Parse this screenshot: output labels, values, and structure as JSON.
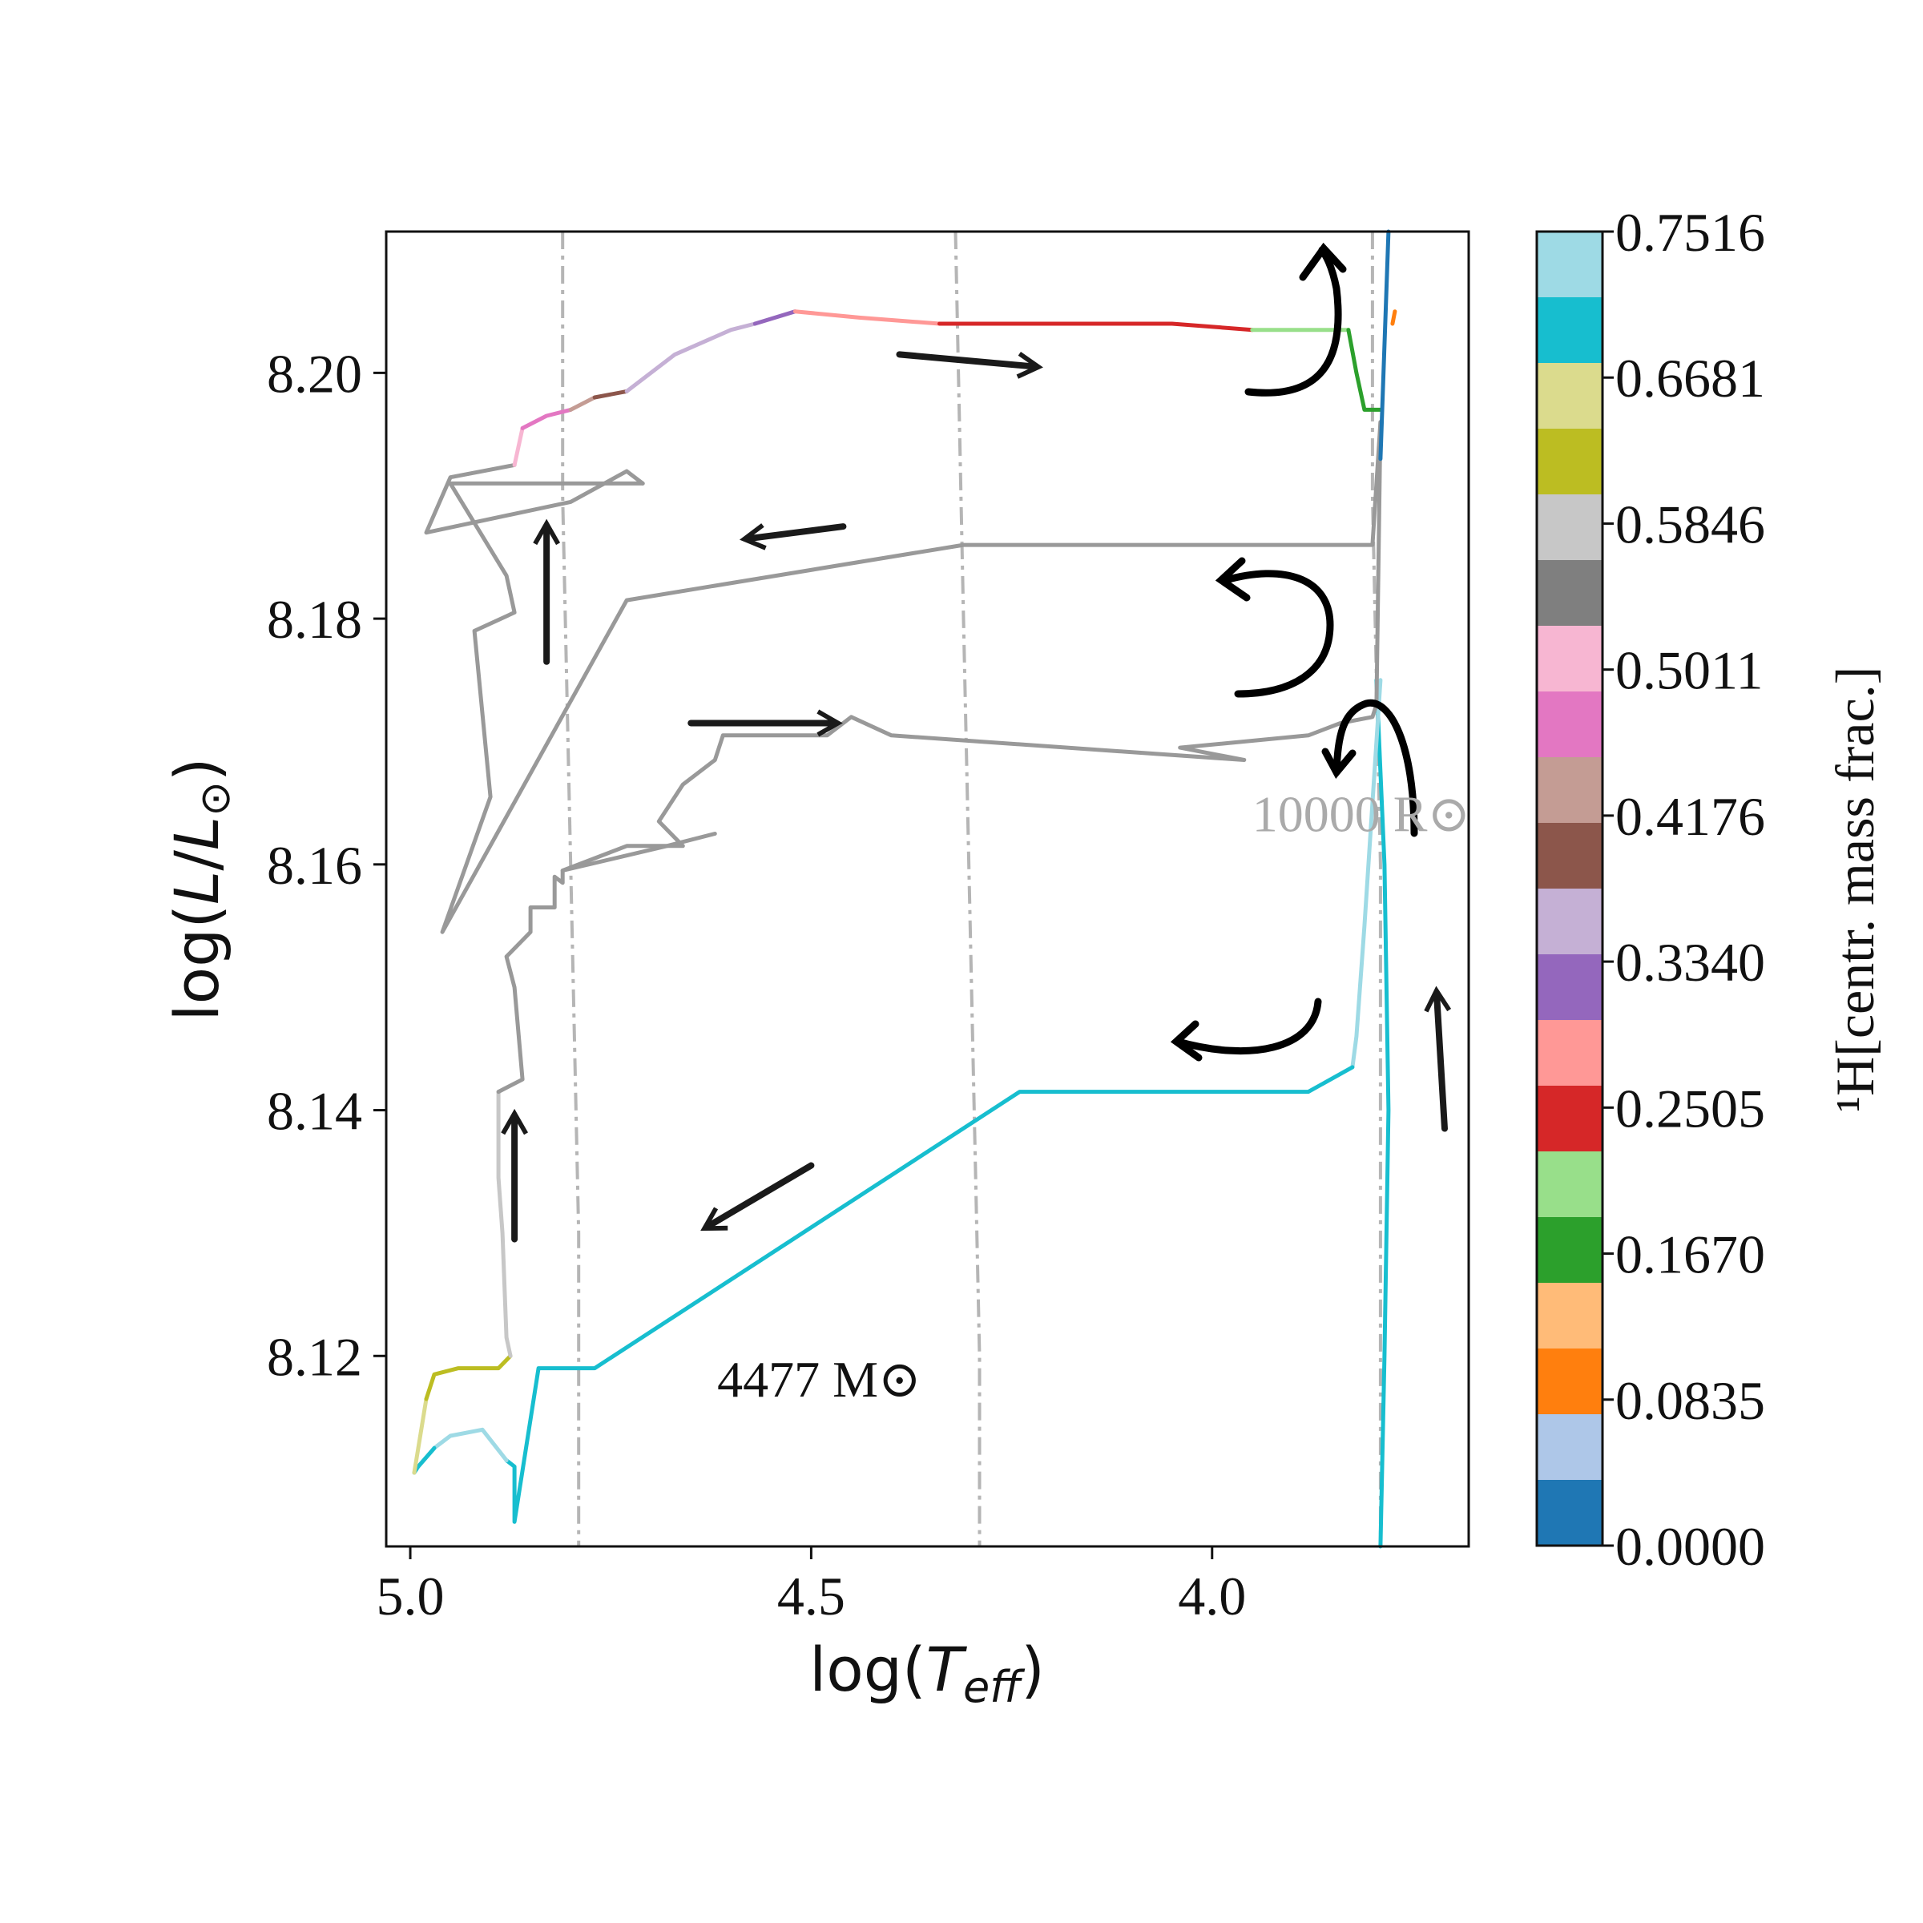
{
  "chart_data": {
    "type": "line",
    "xlabel": "log(T_eff)",
    "ylabel": "log(L/L_sun)",
    "xlim": [
      5.03,
      3.68
    ],
    "ylim": [
      8.1045,
      8.2115
    ],
    "x_ticks": [
      {
        "value": 5.0,
        "label": "5.0"
      },
      {
        "value": 4.5,
        "label": "4.5"
      },
      {
        "value": 4.0,
        "label": "4.0"
      }
    ],
    "y_ticks": [
      {
        "value": 8.12,
        "label": "8.12"
      },
      {
        "value": 8.14,
        "label": "8.14"
      },
      {
        "value": 8.16,
        "label": "8.16"
      },
      {
        "value": 8.18,
        "label": "8.18"
      },
      {
        "value": 8.2,
        "label": "8.20"
      }
    ],
    "grid": false,
    "annotations": [
      {
        "text": "4477 M⊙",
        "x": 4.49,
        "y": 8.118,
        "color": "#111111"
      },
      {
        "text": "10000 R⊙",
        "x": 3.95,
        "y": 8.164,
        "color": "#aaaaaa"
      }
    ],
    "colorbar": {
      "label": "¹H[centr. mass frac.]",
      "ticks": [
        "0.7516",
        "0.6681",
        "0.5846",
        "0.5011",
        "0.4176",
        "0.3340",
        "0.2505",
        "0.1670",
        "0.0835",
        "0.0000"
      ],
      "colors_top_to_bottom": [
        "#9edae5",
        "#17becf",
        "#dbdb8d",
        "#bcbd22",
        "#c7c7c7",
        "#7f7f7f",
        "#f7b6d2",
        "#e377c2",
        "#c49c94",
        "#8c564b",
        "#c5b0d5",
        "#9467bd",
        "#ff9896",
        "#d62728",
        "#98df8a",
        "#2ca02c",
        "#ffbb78",
        "#ff7f0e",
        "#aec7e8",
        "#1f77b4"
      ]
    },
    "radius_lines": [
      {
        "points": [
          [
            4.81,
            8.2115
          ],
          [
            4.81,
            8.19
          ],
          [
            4.8,
            8.16
          ],
          [
            4.79,
            8.13
          ],
          [
            4.79,
            8.1045
          ]
        ]
      },
      {
        "points": [
          [
            4.32,
            8.2115
          ],
          [
            4.31,
            8.18
          ],
          [
            4.3,
            8.15
          ],
          [
            4.29,
            8.12
          ],
          [
            4.29,
            8.1045
          ]
        ]
      },
      {
        "points": [
          [
            3.8,
            8.2115
          ],
          [
            3.8,
            8.19
          ],
          [
            3.79,
            8.16
          ],
          [
            3.79,
            8.13
          ],
          [
            3.79,
            8.1045
          ]
        ]
      }
    ],
    "track_segments": [
      {
        "color": "#17becf",
        "points": [
          [
            3.79,
            8.1045
          ],
          [
            3.785,
            8.12
          ],
          [
            3.78,
            8.14
          ],
          [
            3.785,
            8.16
          ],
          [
            3.795,
            8.175
          ]
        ]
      },
      {
        "color": "#9edae5",
        "points": [
          [
            3.79,
            8.175
          ],
          [
            3.81,
            8.155
          ],
          [
            3.82,
            8.146
          ],
          [
            3.825,
            8.1435
          ]
        ]
      },
      {
        "color": "#17becf",
        "points": [
          [
            3.825,
            8.1435
          ],
          [
            3.88,
            8.1415
          ],
          [
            4.0,
            8.1415
          ],
          [
            4.24,
            8.1415
          ],
          [
            4.77,
            8.119
          ],
          [
            4.84,
            8.119
          ],
          [
            4.87,
            8.1065
          ],
          [
            4.87,
            8.111
          ],
          [
            4.88,
            8.1115
          ]
        ]
      },
      {
        "color": "#9edae5",
        "points": [
          [
            4.88,
            8.1115
          ],
          [
            4.91,
            8.114
          ],
          [
            4.95,
            8.1135
          ],
          [
            4.97,
            8.1125
          ]
        ]
      },
      {
        "color": "#17becf",
        "points": [
          [
            4.97,
            8.1125
          ],
          [
            4.99,
            8.111
          ],
          [
            4.995,
            8.1105
          ]
        ]
      },
      {
        "color": "#dbdb8d",
        "points": [
          [
            4.995,
            8.1105
          ],
          [
            4.98,
            8.1165
          ]
        ]
      },
      {
        "color": "#bcbd22",
        "points": [
          [
            4.98,
            8.1165
          ],
          [
            4.97,
            8.1185
          ],
          [
            4.94,
            8.119
          ],
          [
            4.89,
            8.119
          ],
          [
            4.875,
            8.12
          ]
        ]
      },
      {
        "color": "#c7c7c7",
        "points": [
          [
            4.875,
            8.12
          ],
          [
            4.88,
            8.1215
          ],
          [
            4.885,
            8.13
          ],
          [
            4.89,
            8.1345
          ],
          [
            4.89,
            8.1415
          ]
        ]
      },
      {
        "color": "#999999",
        "points": [
          [
            4.89,
            8.1415
          ],
          [
            4.86,
            8.1425
          ],
          [
            4.87,
            8.15
          ],
          [
            4.88,
            8.1525
          ],
          [
            4.85,
            8.1545
          ],
          [
            4.85,
            8.1565
          ],
          [
            4.82,
            8.1565
          ],
          [
            4.82,
            8.159
          ],
          [
            4.81,
            8.1585
          ],
          [
            4.81,
            8.1595
          ],
          [
            4.68,
            8.1615
          ],
          [
            4.62,
            8.1625
          ]
        ]
      },
      {
        "color": "#999999",
        "points": [
          [
            4.81,
            8.1595
          ],
          [
            4.73,
            8.1615
          ],
          [
            4.66,
            8.1615
          ],
          [
            4.69,
            8.1635
          ],
          [
            4.66,
            8.1665
          ],
          [
            4.62,
            8.1685
          ],
          [
            4.61,
            8.1705
          ],
          [
            4.48,
            8.1705
          ],
          [
            4.45,
            8.172
          ],
          [
            4.4,
            8.1705
          ],
          [
            3.96,
            8.1685
          ],
          [
            4.04,
            8.1695
          ],
          [
            3.88,
            8.1705
          ],
          [
            3.84,
            8.1715
          ],
          [
            3.8,
            8.172
          ],
          [
            3.795,
            8.173
          ],
          [
            3.79,
            8.196
          ]
        ]
      },
      {
        "color": "#999999",
        "points": [
          [
            3.79,
            8.196
          ],
          [
            3.8,
            8.186
          ],
          [
            3.83,
            8.186
          ],
          [
            4.31,
            8.186
          ],
          [
            4.73,
            8.1815
          ],
          [
            4.96,
            8.1545
          ],
          [
            4.9,
            8.1655
          ],
          [
            4.92,
            8.179
          ],
          [
            4.87,
            8.1805
          ],
          [
            4.88,
            8.1835
          ],
          [
            4.95,
            8.191
          ],
          [
            4.71,
            8.191
          ]
        ]
      },
      {
        "color": "#999999",
        "points": [
          [
            4.71,
            8.191
          ],
          [
            4.73,
            8.192
          ],
          [
            4.8,
            8.1895
          ],
          [
            4.98,
            8.187
          ],
          [
            4.95,
            8.1915
          ],
          [
            4.87,
            8.1925
          ]
        ]
      },
      {
        "color": "#f7b6d2",
        "points": [
          [
            4.87,
            8.1925
          ],
          [
            4.86,
            8.1955
          ]
        ]
      },
      {
        "color": "#e377c2",
        "points": [
          [
            4.86,
            8.1955
          ],
          [
            4.83,
            8.1965
          ],
          [
            4.8,
            8.197
          ]
        ]
      },
      {
        "color": "#c49c94",
        "points": [
          [
            4.8,
            8.197
          ],
          [
            4.77,
            8.198
          ]
        ]
      },
      {
        "color": "#8c564b",
        "points": [
          [
            4.77,
            8.198
          ],
          [
            4.73,
            8.1985
          ]
        ]
      },
      {
        "color": "#c5b0d5",
        "points": [
          [
            4.73,
            8.1985
          ],
          [
            4.67,
            8.2015
          ],
          [
            4.6,
            8.2035
          ],
          [
            4.57,
            8.204
          ]
        ]
      },
      {
        "color": "#9467bd",
        "points": [
          [
            4.57,
            8.204
          ],
          [
            4.52,
            8.205
          ]
        ]
      },
      {
        "color": "#ff9896",
        "points": [
          [
            4.52,
            8.205
          ],
          [
            4.44,
            8.2045
          ],
          [
            4.34,
            8.204
          ]
        ]
      },
      {
        "color": "#d62728",
        "points": [
          [
            4.34,
            8.204
          ],
          [
            4.22,
            8.204
          ],
          [
            4.05,
            8.204
          ],
          [
            3.95,
            8.2035
          ]
        ]
      },
      {
        "color": "#98df8a",
        "points": [
          [
            3.95,
            8.2035
          ],
          [
            3.83,
            8.2035
          ]
        ]
      },
      {
        "color": "#2ca02c",
        "points": [
          [
            3.83,
            8.2035
          ],
          [
            3.82,
            8.2
          ],
          [
            3.81,
            8.197
          ],
          [
            3.79,
            8.197
          ]
        ]
      },
      {
        "color": "#1f77b4",
        "points": [
          [
            3.79,
            8.193
          ],
          [
            3.78,
            8.2115
          ]
        ]
      },
      {
        "color": "#ff7f0e",
        "points": [
          [
            3.775,
            8.204
          ],
          [
            3.772,
            8.205
          ]
        ]
      }
    ],
    "arrows": [
      {
        "label": "arrow",
        "from": [
          4.39,
          8.2015
        ],
        "to": [
          4.22,
          8.2005
        ]
      },
      {
        "label": "arrow",
        "from": [
          4.46,
          8.1875
        ],
        "to": [
          4.58,
          8.1865
        ]
      },
      {
        "label": "arrow",
        "from": [
          4.65,
          8.1715
        ],
        "to": [
          4.47,
          8.1715
        ]
      },
      {
        "label": "arrow",
        "from": [
          4.83,
          8.1765
        ],
        "to": [
          4.83,
          8.1875
        ]
      },
      {
        "label": "arrow",
        "from": [
          4.87,
          8.1295
        ],
        "to": [
          4.87,
          8.1395
        ]
      },
      {
        "label": "arrow",
        "from": [
          4.5,
          8.1355
        ],
        "to": [
          4.63,
          8.1305
        ]
      },
      {
        "label": "arrow",
        "from": [
          3.71,
          8.1385
        ],
        "to": [
          3.72,
          8.1495
        ]
      }
    ]
  }
}
